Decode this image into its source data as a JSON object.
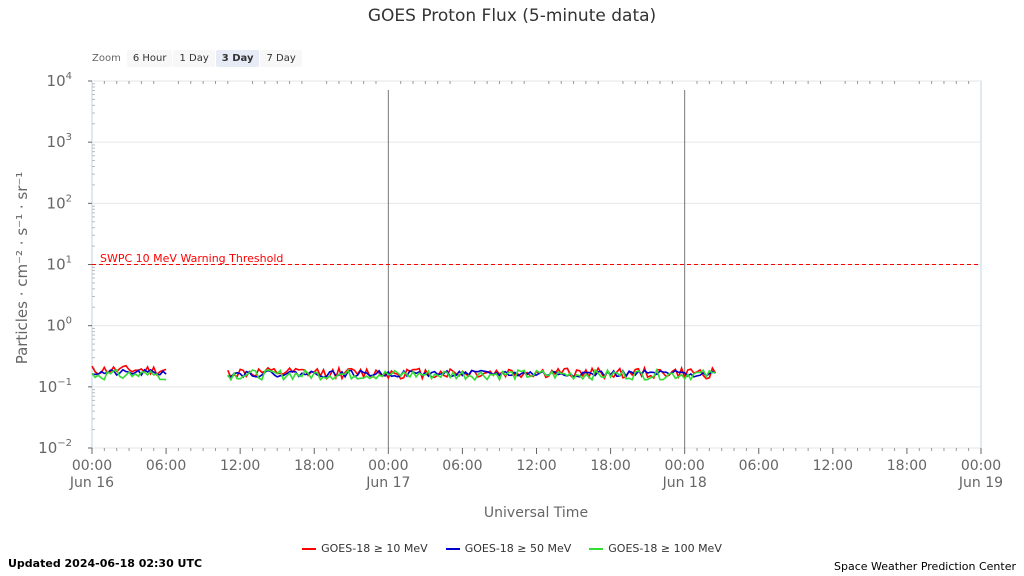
{
  "chart_data": {
    "type": "line",
    "title": "GOES Proton Flux (5-minute data)",
    "ylabel": "Particles · cm⁻² · s⁻¹ · sr⁻¹",
    "xlabel": "Universal Time",
    "yscale": "log",
    "ylim": [
      0.01,
      10000
    ],
    "y_ticks": [
      {
        "value": 0.01,
        "base": "10",
        "exp": "−2"
      },
      {
        "value": 0.1,
        "base": "10",
        "exp": "−1"
      },
      {
        "value": 1,
        "base": "10",
        "exp": "0"
      },
      {
        "value": 10,
        "base": "10",
        "exp": "1"
      },
      {
        "value": 100,
        "base": "10",
        "exp": "2"
      },
      {
        "value": 1000,
        "base": "10",
        "exp": "3"
      },
      {
        "value": 10000,
        "base": "10",
        "exp": "4"
      }
    ],
    "xlim": [
      "2024-06-16 00:00",
      "2024-06-19 00:00"
    ],
    "x_ticks": [
      {
        "time": "00:00",
        "date": "Jun 16"
      },
      {
        "time": "06:00",
        "date": ""
      },
      {
        "time": "12:00",
        "date": ""
      },
      {
        "time": "18:00",
        "date": ""
      },
      {
        "time": "00:00",
        "date": "Jun 17"
      },
      {
        "time": "06:00",
        "date": ""
      },
      {
        "time": "12:00",
        "date": ""
      },
      {
        "time": "18:00",
        "date": ""
      },
      {
        "time": "00:00",
        "date": "Jun 18"
      },
      {
        "time": "06:00",
        "date": ""
      },
      {
        "time": "12:00",
        "date": ""
      },
      {
        "time": "18:00",
        "date": ""
      },
      {
        "time": "00:00",
        "date": "Jun 19"
      }
    ],
    "threshold": {
      "label": "SWPC 10 MeV Warning Threshold",
      "value": 10,
      "color": "#ff0000"
    },
    "day_markers": [
      "2024-06-17 00:00",
      "2024-06-18 00:00"
    ],
    "series": [
      {
        "name": "GOES-18 ≥ 10 MeV",
        "color": "#ff0000",
        "segments": [
          {
            "start": "2024-06-16 00:00",
            "end": "2024-06-16 06:00",
            "base": 0.19,
            "amp": 0.035,
            "seed": 11
          },
          {
            "start": "2024-06-16 11:00",
            "end": "2024-06-18 02:30",
            "base": 0.17,
            "amp": 0.035,
            "seed": 12
          }
        ]
      },
      {
        "name": "GOES-18 ≥ 50 MeV",
        "color": "#0000cc",
        "segments": [
          {
            "start": "2024-06-16 00:00",
            "end": "2024-06-16 06:00",
            "base": 0.17,
            "amp": 0.02,
            "seed": 21
          },
          {
            "start": "2024-06-16 11:00",
            "end": "2024-06-18 02:30",
            "base": 0.165,
            "amp": 0.02,
            "seed": 22
          }
        ]
      },
      {
        "name": "GOES-18 ≥ 100 MeV",
        "color": "#33dd33",
        "segments": [
          {
            "start": "2024-06-16 00:00",
            "end": "2024-06-16 06:00",
            "base": 0.16,
            "amp": 0.03,
            "seed": 31
          },
          {
            "start": "2024-06-16 11:00",
            "end": "2024-06-18 02:30",
            "base": 0.16,
            "amp": 0.03,
            "seed": 32
          }
        ]
      }
    ]
  },
  "zoom": {
    "label": "Zoom",
    "buttons": [
      "6 Hour",
      "1 Day",
      "3 Day",
      "7 Day"
    ],
    "active": "3 Day"
  },
  "footer": {
    "updated": "Updated 2024-06-18 02:30 UTC",
    "credit": "Space Weather Prediction Center"
  }
}
